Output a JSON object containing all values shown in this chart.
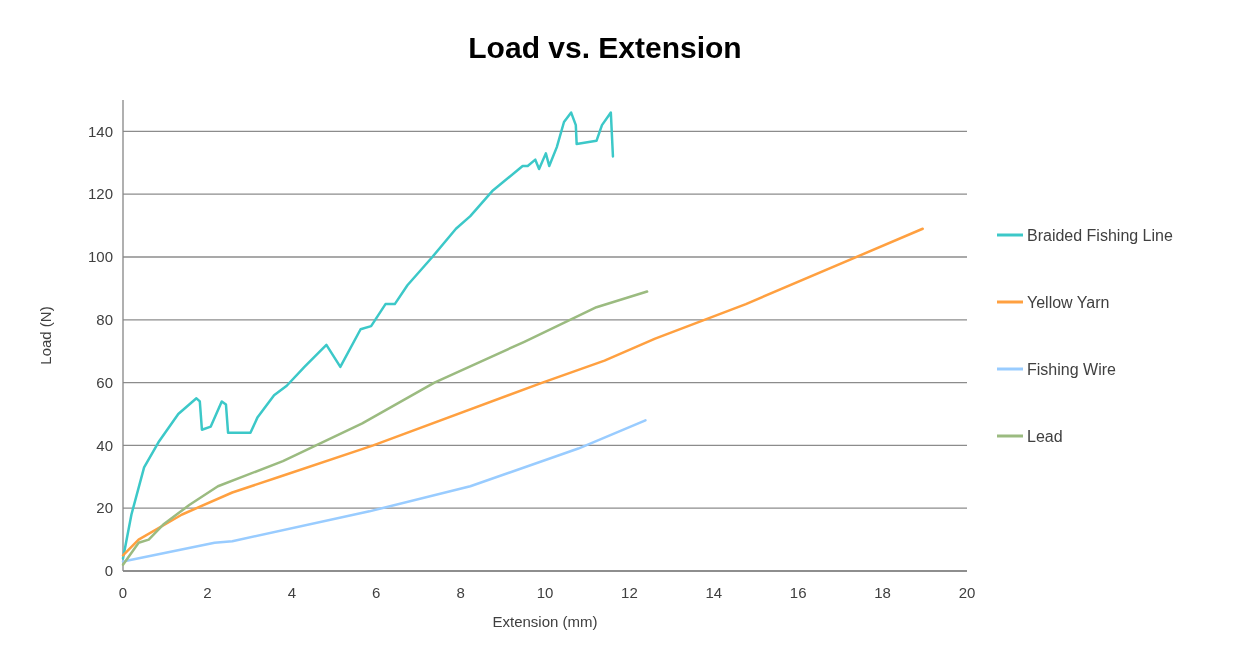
{
  "chart_data": {
    "type": "line",
    "title": "Load vs. Extension",
    "xlabel": "Extension (mm)",
    "ylabel": "Load (N)",
    "xlim": [
      0,
      20
    ],
    "xticks": [
      0,
      2,
      4,
      6,
      8,
      10,
      12,
      14,
      16,
      18,
      20
    ],
    "ylim": [
      0,
      150
    ],
    "yticks": [
      0,
      20,
      40,
      60,
      80,
      100,
      120,
      140
    ],
    "grid": "y",
    "legend": "right",
    "line_style": "solid",
    "marker": "none",
    "series": [
      {
        "name": "Braided Fishing Line",
        "color": "#3cc8c8",
        "x": [
          0,
          0.2,
          0.5,
          0.84,
          1.31,
          1.74,
          1.82,
          1.87,
          2.08,
          2.34,
          2.44,
          2.49,
          3.02,
          3.19,
          3.58,
          3.88,
          4.3,
          4.82,
          5.15,
          5.63,
          5.88,
          6.22,
          6.44,
          6.74,
          7.33,
          7.89,
          8.23,
          8.75,
          9.47,
          9.59,
          9.77,
          9.86,
          10.02,
          10.1,
          10.28,
          10.45,
          10.62,
          10.73,
          10.75,
          11.22,
          11.35,
          11.56,
          11.61
        ],
        "values": [
          4,
          18,
          33,
          41,
          50,
          55,
          54,
          45,
          46,
          54,
          53,
          44,
          44,
          49,
          56,
          59,
          65,
          72,
          65,
          77,
          78,
          85,
          85,
          91,
          100,
          109,
          113,
          121,
          129,
          129,
          131,
          128,
          133,
          129,
          135,
          143,
          146,
          142,
          136,
          137,
          142,
          146,
          132
        ]
      },
      {
        "name": "Yellow Yarn",
        "color": "#ffa040",
        "x": [
          0,
          0.37,
          1.4,
          2.59,
          3.71,
          5.93,
          9.94,
          11.41,
          12.61,
          14.76,
          18.95
        ],
        "values": [
          5,
          10,
          18,
          25,
          30,
          40,
          60,
          67,
          74,
          85,
          109
        ]
      },
      {
        "name": "Fishing Wire",
        "color": "#99ccff",
        "x": [
          0,
          2.17,
          2.59,
          5.84,
          8.23,
          10.79,
          12.38
        ],
        "values": [
          3,
          9,
          9.5,
          19,
          27,
          39,
          48
        ]
      },
      {
        "name": "Lead",
        "color": "#9bbb80",
        "x": [
          0,
          0.37,
          0.61,
          0.97,
          1.57,
          2.25,
          3.79,
          5.67,
          7.38,
          9.51,
          11.22,
          12.42
        ],
        "values": [
          2,
          9,
          10,
          15,
          21,
          27,
          35,
          47,
          60,
          73,
          84,
          89
        ]
      }
    ]
  }
}
